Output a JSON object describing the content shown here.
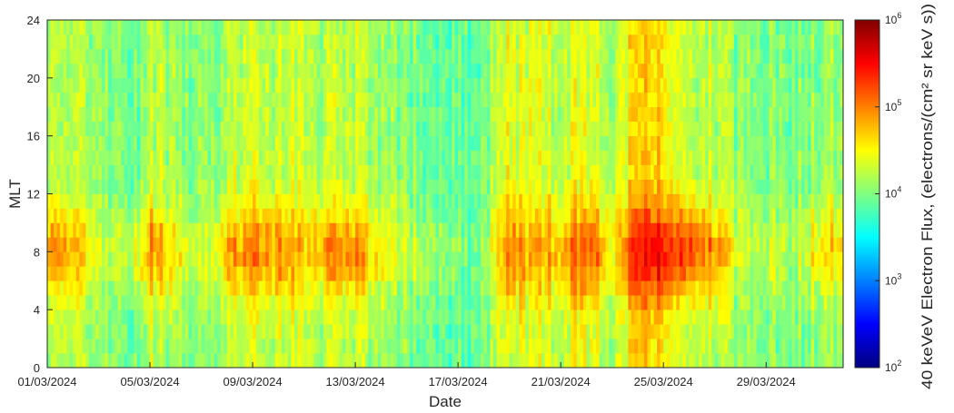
{
  "chart_data": {
    "type": "heatmap",
    "title": "",
    "xlabel": "Date",
    "ylabel": "MLT",
    "x_range": [
      "2024-03-01",
      "2024-03-31"
    ],
    "x_ticks": [
      "01/03/2024",
      "05/03/2024",
      "09/03/2024",
      "13/03/2024",
      "17/03/2024",
      "21/03/2024",
      "25/03/2024",
      "29/03/2024"
    ],
    "x_tick_dates": [
      "2024-03-01",
      "2024-03-05",
      "2024-03-09",
      "2024-03-13",
      "2024-03-17",
      "2024-03-21",
      "2024-03-25",
      "2024-03-29"
    ],
    "ylim": [
      0,
      24
    ],
    "y_ticks": [
      "0",
      "4",
      "8",
      "12",
      "16",
      "20",
      "24"
    ],
    "mlt_bin_hours": 1,
    "colormap": "jet",
    "colorbar": {
      "label": "40 keVeV Electron Flux, (electrons/(cm² sr keV s))",
      "scale": "log",
      "range": [
        100,
        1000000
      ],
      "ticks": [
        "10^2",
        "10^3",
        "10^4",
        "10^5",
        "10^6"
      ]
    },
    "daily_log10_flux_profile": {
      "dates": [
        "2024-03-01",
        "2024-03-02",
        "2024-03-03",
        "2024-03-04",
        "2024-03-05",
        "2024-03-06",
        "2024-03-07",
        "2024-03-08",
        "2024-03-09",
        "2024-03-10",
        "2024-03-11",
        "2024-03-12",
        "2024-03-13",
        "2024-03-14",
        "2024-03-15",
        "2024-03-16",
        "2024-03-17",
        "2024-03-18",
        "2024-03-19",
        "2024-03-20",
        "2024-03-21",
        "2024-03-22",
        "2024-03-23",
        "2024-03-24",
        "2024-03-25",
        "2024-03-26",
        "2024-03-27",
        "2024-03-28",
        "2024-03-29",
        "2024-03-30",
        "2024-03-31"
      ],
      "dayside_peak": [
        5.0,
        4.9,
        4.3,
        4.1,
        4.9,
        4.5,
        4.2,
        4.8,
        5.0,
        5.0,
        4.6,
        4.9,
        4.9,
        4.5,
        4.3,
        4.1,
        4.0,
        4.1,
        5.1,
        4.7,
        4.9,
        5.2,
        4.6,
        5.5,
        5.5,
        5.3,
        4.9,
        4.2,
        4.3,
        4.2,
        4.6
      ],
      "nightside": [
        4.3,
        4.3,
        4.1,
        3.8,
        4.2,
        4.1,
        4.0,
        4.2,
        4.3,
        4.3,
        4.2,
        4.2,
        4.2,
        4.1,
        4.0,
        3.9,
        3.9,
        4.0,
        4.4,
        4.3,
        4.3,
        4.4,
        4.2,
        4.7,
        4.6,
        4.3,
        4.2,
        4.0,
        4.0,
        4.0,
        4.1
      ]
    }
  }
}
